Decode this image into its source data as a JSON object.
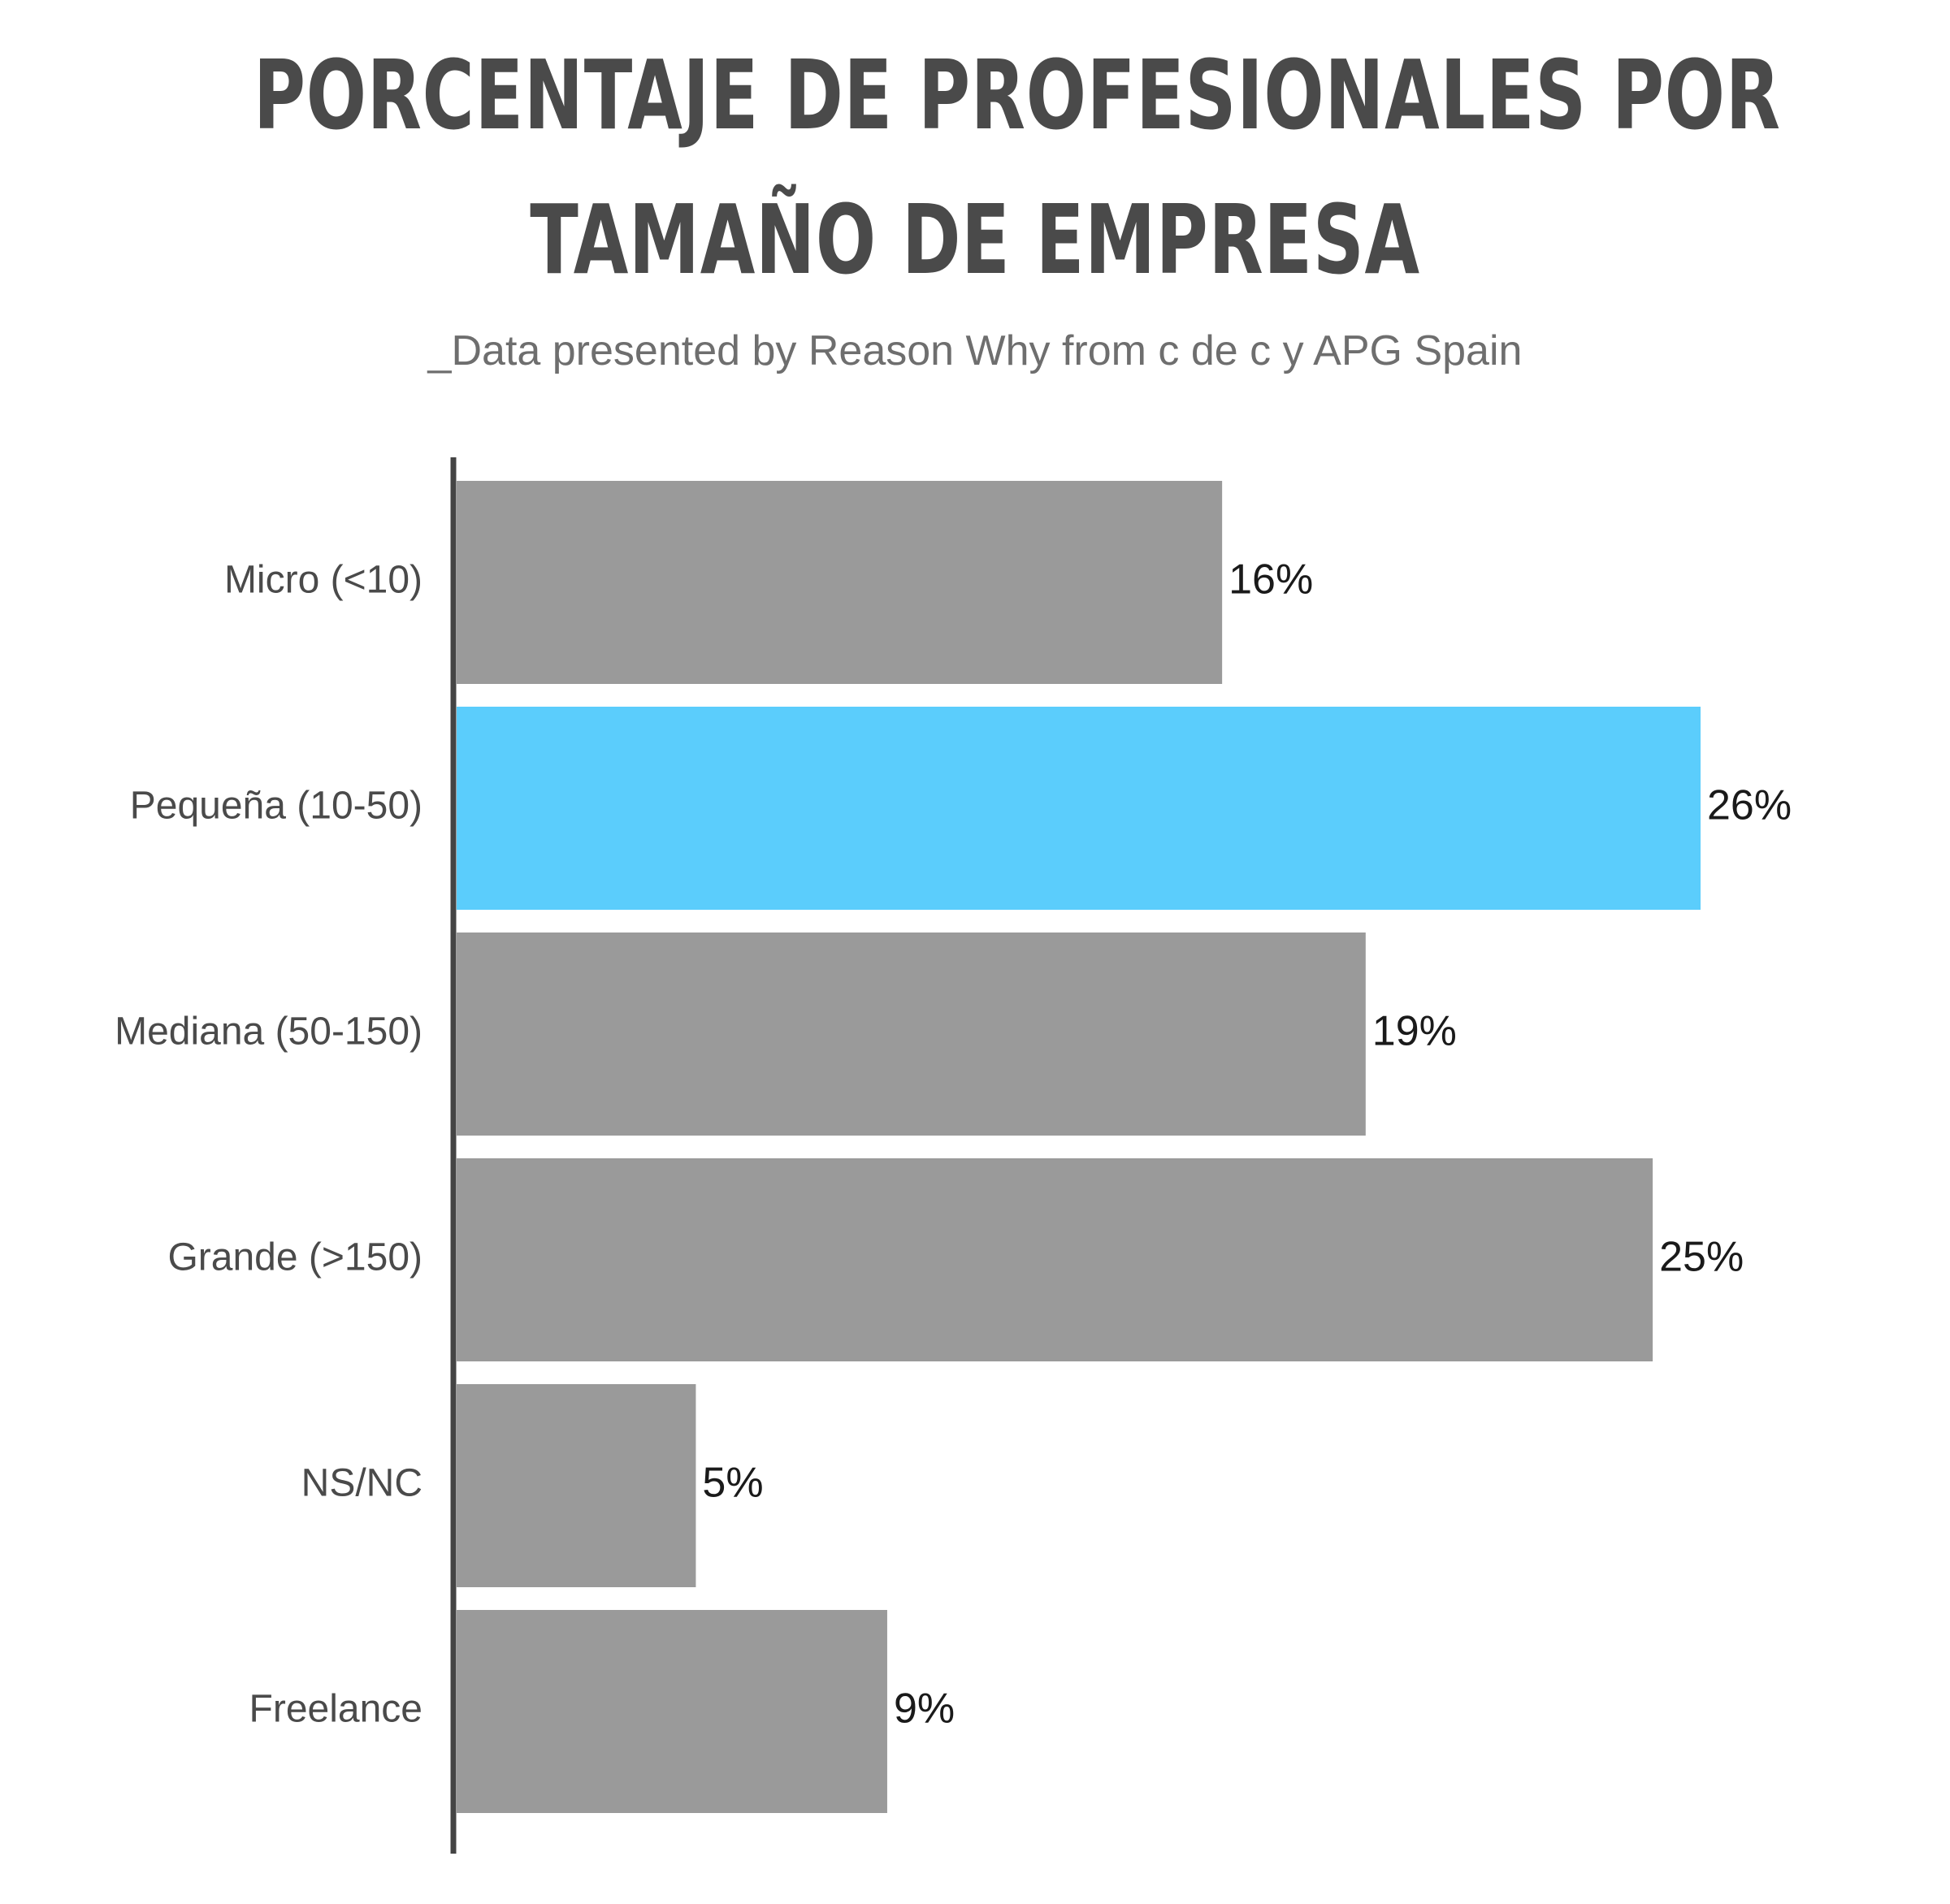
{
  "title_lines": [
    "PORCENTAJE DE PROFESIONALES POR",
    "TAMAÑO DE EMPRESA"
  ],
  "subtitle": "_Data presented by Reason Why from c de c y APG Spain",
  "colors": {
    "bar_default": "#9a9a9a",
    "bar_highlight": "#5bcdfc",
    "axis": "#444444",
    "title": "#4a4a4a"
  },
  "chart_data": {
    "type": "bar",
    "orientation": "horizontal",
    "title": "PORCENTAJE DE PROFESIONALES POR TAMAÑO DE EMPRESA",
    "subtitle": "_Data presented by Reason Why from c de c y APG Spain",
    "categories": [
      "Micro (<10)",
      "Pequeña (10-50)",
      "Mediana (50-150)",
      "Grande (>150)",
      "NS/NC",
      "Freelance"
    ],
    "values": [
      16,
      26,
      19,
      25,
      5,
      9
    ],
    "value_labels": [
      "16%",
      "26%",
      "19%",
      "25%",
      "5%",
      "9%"
    ],
    "highlight_index": 1,
    "xlabel": "",
    "ylabel": "",
    "xlim": [
      0,
      26
    ],
    "grid": false,
    "legend": "none"
  }
}
